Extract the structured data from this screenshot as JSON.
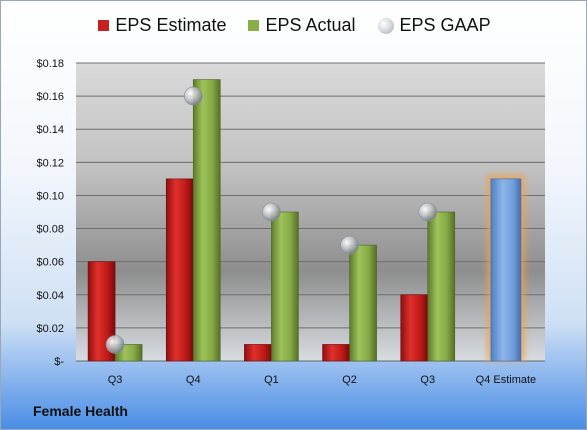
{
  "chart_data": {
    "type": "bar",
    "title": "",
    "legend_placement": "top",
    "categories": [
      "Q3",
      "Q4",
      "Q1",
      "Q2",
      "Q3",
      "Q4 Estimate"
    ],
    "series": [
      {
        "name": "EPS Estimate",
        "type": "bar",
        "color": "#c8201e",
        "values": [
          0.06,
          0.11,
          0.01,
          0.01,
          0.04,
          null
        ]
      },
      {
        "name": "EPS Actual",
        "type": "bar",
        "color": "#8aae47",
        "values": [
          0.01,
          0.17,
          0.09,
          0.07,
          0.09,
          null
        ]
      },
      {
        "name": "EPS GAAP",
        "type": "marker",
        "color": "#b8bcc2",
        "values": [
          0.01,
          0.16,
          0.09,
          0.07,
          0.09,
          null
        ]
      },
      {
        "name": "",
        "type": "bar",
        "color": "#6fa0dc",
        "highlight": "#f0a24a",
        "values": [
          null,
          null,
          null,
          null,
          null,
          0.11
        ]
      }
    ],
    "ylim": [
      0,
      0.18
    ],
    "yticks": [
      0,
      0.02,
      0.04,
      0.06,
      0.08,
      0.1,
      0.12,
      0.14,
      0.16,
      0.18
    ],
    "ytick_labels": [
      "$-",
      "$0.02",
      "$0.04",
      "$0.06",
      "$0.08",
      "$0.10",
      "$0.12",
      "$0.14",
      "$0.16",
      "$0.18"
    ],
    "grid": true,
    "xlabel": "",
    "ylabel": ""
  },
  "legend": {
    "estimate": "EPS Estimate",
    "actual": "EPS Actual",
    "gaap": "EPS GAAP"
  },
  "company": "Female Health"
}
